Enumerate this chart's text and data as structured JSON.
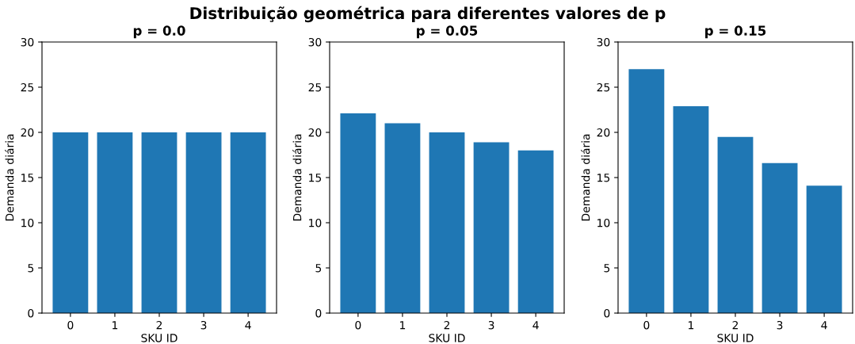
{
  "chart_data": [
    {
      "type": "bar",
      "title": "p = 0.0",
      "xlabel": "SKU ID",
      "ylabel": "Demanda diária",
      "categories": [
        "0",
        "1",
        "2",
        "3",
        "4"
      ],
      "values": [
        20,
        20,
        20,
        20,
        20
      ],
      "color": "#1f77b4",
      "ylim": [
        0,
        30
      ],
      "yticks": [
        0,
        5,
        10,
        15,
        20,
        25,
        30
      ],
      "annotations": [
        "Distribuição geométrica para diferentes valores de p"
      ]
    },
    {
      "type": "bar",
      "title": "p = 0.05",
      "xlabel": "SKU ID",
      "ylabel": "Demanda diária",
      "categories": [
        "0",
        "1",
        "2",
        "3",
        "4"
      ],
      "values": [
        22.1,
        21.0,
        20.0,
        18.9,
        18.0
      ],
      "color": "#1f77b4",
      "ylim": [
        0,
        30
      ],
      "yticks": [
        0,
        5,
        10,
        15,
        20,
        25,
        30
      ]
    },
    {
      "type": "bar",
      "title": "p = 0.15",
      "xlabel": "SKU ID",
      "ylabel": "Demanda diária",
      "categories": [
        "0",
        "1",
        "2",
        "3",
        "4"
      ],
      "values": [
        27.0,
        22.9,
        19.5,
        16.6,
        14.1
      ],
      "color": "#1f77b4",
      "ylim": [
        0,
        30
      ],
      "yticks": [
        0,
        5,
        10,
        15,
        20,
        25,
        30
      ]
    }
  ]
}
